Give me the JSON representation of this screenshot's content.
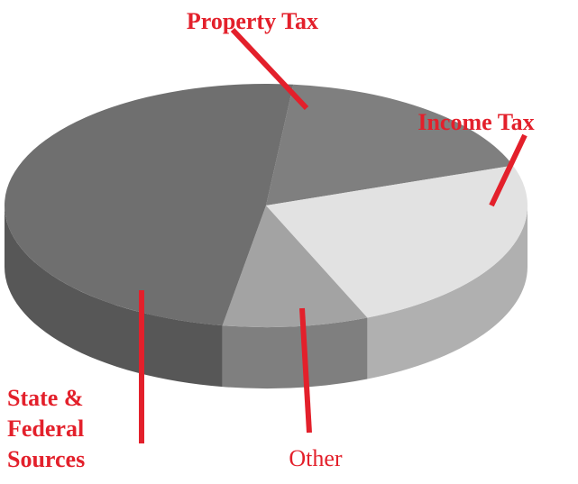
{
  "chart_data": {
    "type": "pie",
    "categories": [
      "Property Tax",
      "Income Tax",
      "Other",
      "State & Federal Sources"
    ],
    "values": [
      18,
      24,
      9,
      49
    ],
    "colors": [
      "#7f7f7f",
      "#e2e2e2",
      "#a3a3a3",
      "#6f6f6f"
    ]
  }
}
